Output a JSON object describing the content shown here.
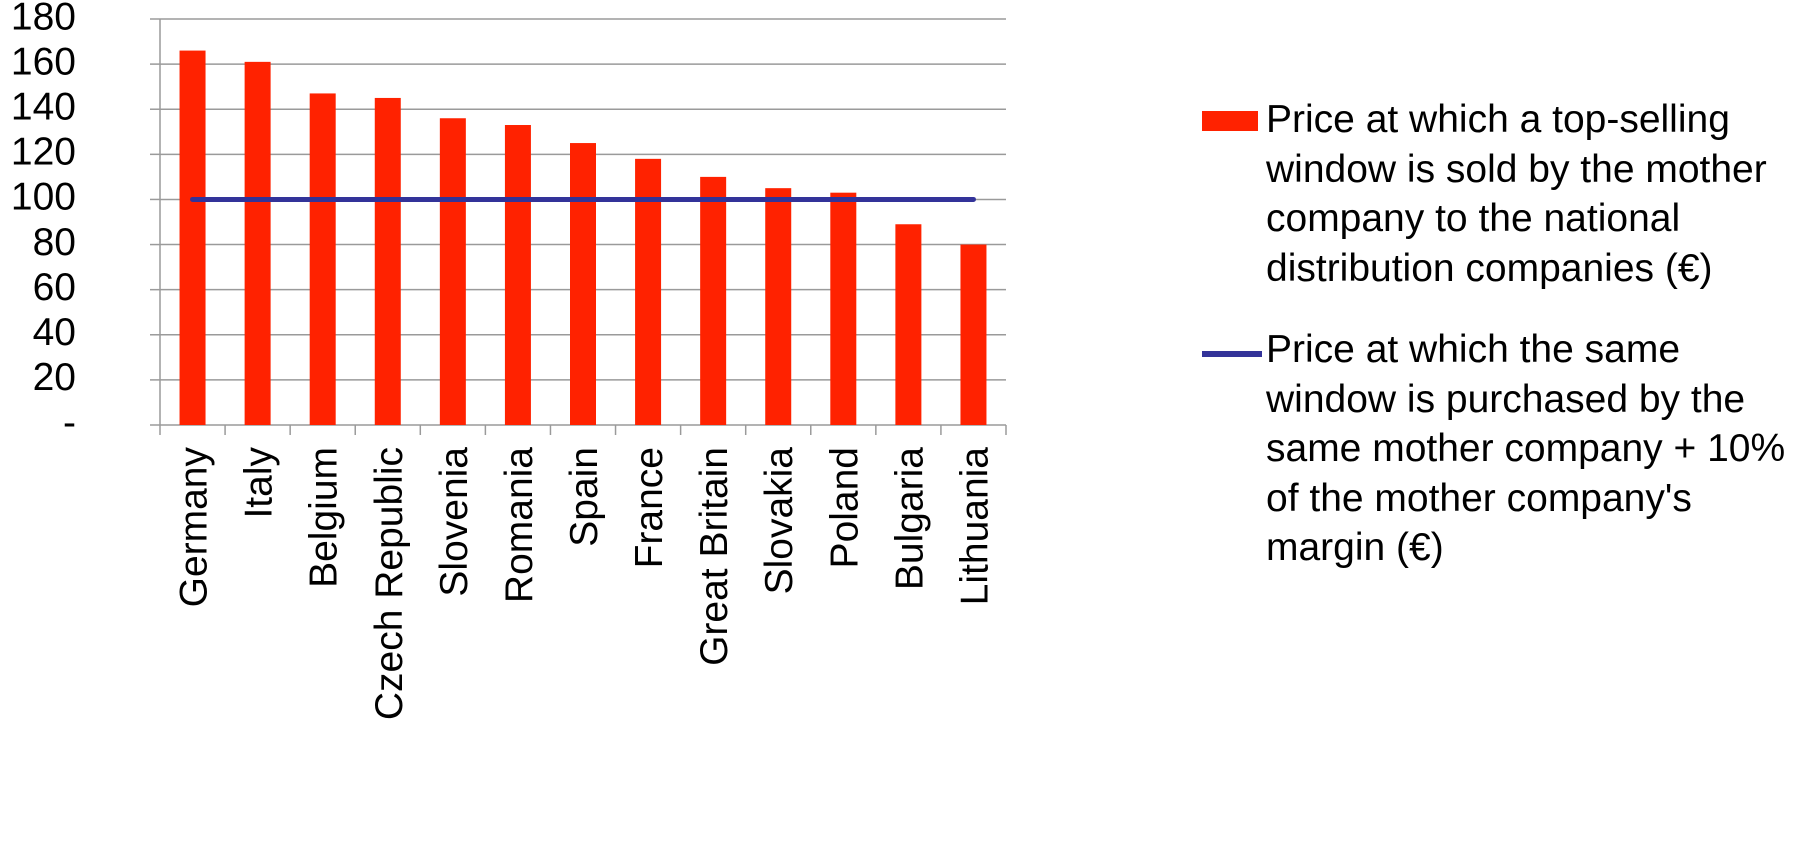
{
  "chart_data": {
    "type": "bar",
    "categories": [
      "Germany",
      "Italy",
      "Belgium",
      "Czech Republic",
      "Slovenia",
      "Romania",
      "Spain",
      "France",
      "Great Britain",
      "Slovakia",
      "Poland",
      "Bulgaria",
      "Lithuania"
    ],
    "series": [
      {
        "name": "Price at which a top-selling window is sold by the mother company to the national distribution companies (€)",
        "type": "bar",
        "color": "#ff2200",
        "values": [
          166,
          161,
          147,
          145,
          136,
          133,
          125,
          118,
          110,
          105,
          103,
          89,
          80
        ]
      },
      {
        "name": "Price at which the same window is purchased by the same mother company + 10% of the mother company's margin (€)",
        "type": "line",
        "color": "#333399",
        "values": [
          100,
          100,
          100,
          100,
          100,
          100,
          100,
          100,
          100,
          100,
          100,
          100,
          100
        ]
      }
    ],
    "y_tick_labels": [
      "-",
      "20",
      "40",
      "60",
      "80",
      "100",
      "120",
      "140",
      "160",
      "180"
    ],
    "ylim": [
      0,
      180
    ],
    "grid": true,
    "legend_position": "right",
    "title": "",
    "xlabel": "",
    "ylabel": ""
  },
  "legend": {
    "bar_label": "Price at which a top-selling window is sold by the mother company to the national distribution companies (€)",
    "line_label": "Price at which the same window is purchased by the same mother company + 10% of the mother company's margin (€)"
  }
}
